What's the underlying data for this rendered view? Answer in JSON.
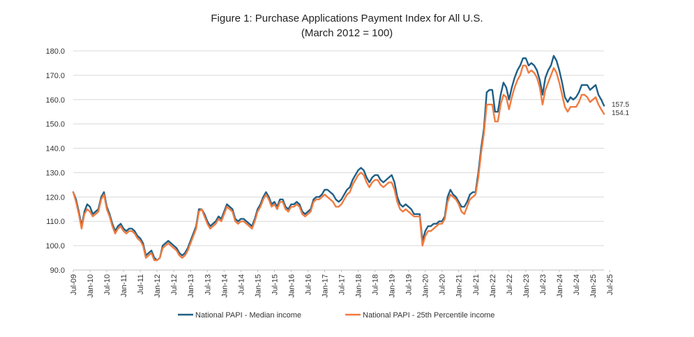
{
  "chart_data": {
    "type": "line",
    "title": "Figure 1: Purchase Applications Payment Index for All U.S.",
    "subtitle": "(March 2012 = 100)",
    "xlabel": "",
    "ylabel": "",
    "ylim": [
      90,
      180
    ],
    "yticks": [
      "90.0",
      "100.0",
      "110.0",
      "120.0",
      "130.0",
      "140.0",
      "150.0",
      "160.0",
      "170.0",
      "180.0"
    ],
    "xticks": [
      "Jul-09",
      "Jan-10",
      "Jul-10",
      "Jan-11",
      "Jul-11",
      "Jan-12",
      "Jul-12",
      "Jan-13",
      "Jul-13",
      "Jan-14",
      "Jul-14",
      "Jan-15",
      "Jul-15",
      "Jan-16",
      "Jul-16",
      "Jan-17",
      "Jul-17",
      "Jan-18",
      "Jul-18",
      "Jan-19",
      "Jul-19",
      "Jan-20",
      "Jul-20",
      "Jan-21",
      "Jul-21",
      "Jan-22",
      "Jul-22",
      "Jan-23",
      "Jul-23",
      "Jan-24",
      "Jul-24",
      "Jan-25",
      "Jul-25"
    ],
    "grid": true,
    "legend_position": "bottom",
    "x_start": "Jul-09",
    "x_frequency": "monthly",
    "series": [
      {
        "name": "National PAPI - Median income",
        "color": "#1f5f86",
        "end_label": "157.5",
        "values": [
          122,
          119,
          114,
          108,
          114,
          117,
          116,
          113,
          114,
          115,
          120,
          122,
          116,
          113,
          109,
          106,
          108,
          109,
          107,
          106,
          107,
          107,
          106,
          104,
          103,
          101,
          96,
          97,
          98,
          95,
          94,
          95,
          100,
          101,
          102,
          101,
          100,
          99,
          97,
          96,
          97,
          99,
          102,
          105,
          108,
          115,
          115,
          113,
          110,
          108,
          109,
          110,
          112,
          111,
          114,
          117,
          116,
          115,
          111,
          110,
          111,
          111,
          110,
          109,
          108,
          111,
          115,
          117,
          120,
          122,
          120,
          117,
          118,
          116,
          119,
          119,
          116,
          115,
          117,
          117,
          118,
          117,
          114,
          113,
          114,
          115,
          119,
          120,
          120,
          121,
          123,
          123,
          122,
          121,
          119,
          118,
          119,
          121,
          123,
          124,
          127,
          129,
          131,
          132,
          131,
          128,
          126,
          128,
          129,
          129,
          127,
          126,
          127,
          128,
          129,
          126,
          120,
          117,
          116,
          117,
          116,
          115,
          113,
          113,
          113,
          102,
          106,
          108,
          108,
          109,
          109,
          110,
          110,
          112,
          120,
          123,
          121,
          120,
          118,
          116,
          116,
          118,
          121,
          122,
          122,
          130,
          140,
          148,
          163,
          164,
          164,
          155,
          155,
          162,
          167,
          165,
          160,
          165,
          169,
          172,
          174,
          177,
          177,
          174,
          175,
          174,
          172,
          168,
          162,
          169,
          172,
          174,
          178,
          176,
          172,
          167,
          161,
          159,
          161,
          160,
          161,
          163,
          166,
          166,
          166,
          164,
          165,
          166,
          162,
          160,
          157.5
        ]
      },
      {
        "name": "National PAPI - 25th Percentile income",
        "color": "#f07b3f",
        "end_label": "154.1",
        "values": [
          122,
          118,
          113,
          107,
          113,
          115,
          114,
          112,
          113,
          114,
          119,
          121,
          115,
          112,
          108,
          105,
          107,
          108,
          106,
          105,
          106,
          106,
          105,
          103,
          102,
          100,
          95,
          96,
          97,
          94,
          94,
          95,
          99,
          100,
          101,
          100,
          99,
          98,
          96,
          95,
          96,
          98,
          101,
          104,
          107,
          114,
          115,
          112,
          109,
          107,
          108,
          109,
          111,
          110,
          113,
          116,
          115,
          114,
          110,
          109,
          110,
          110,
          109,
          108,
          107,
          110,
          114,
          116,
          119,
          121,
          119,
          116,
          117,
          115,
          118,
          118,
          115,
          114,
          116,
          116,
          117,
          116,
          113,
          112,
          113,
          114,
          118,
          119,
          119,
          120,
          121,
          120,
          119,
          118,
          116,
          116,
          117,
          119,
          121,
          122,
          125,
          127,
          129,
          130,
          129,
          126,
          124,
          126,
          127,
          127,
          125,
          124,
          125,
          126,
          126,
          123,
          118,
          115,
          114,
          115,
          114,
          113,
          112,
          112,
          112,
          100,
          104,
          106,
          106,
          107,
          108,
          109,
          109,
          111,
          118,
          121,
          120,
          119,
          117,
          114,
          113,
          116,
          119,
          120,
          121,
          128,
          138,
          146,
          158,
          158,
          158,
          151,
          151,
          158,
          162,
          161,
          156,
          161,
          165,
          168,
          170,
          174,
          174,
          171,
          172,
          171,
          169,
          165,
          158,
          164,
          167,
          170,
          173,
          171,
          167,
          162,
          157,
          155,
          157,
          157,
          157,
          159,
          162,
          162,
          161,
          159,
          160,
          161,
          158,
          156,
          154.1
        ]
      }
    ]
  }
}
